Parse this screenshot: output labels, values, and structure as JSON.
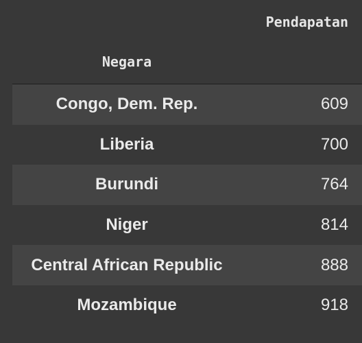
{
  "table": {
    "column_header": "Pendapatan",
    "index_header": "Negara",
    "rows": [
      {
        "label": "Congo, Dem. Rep.",
        "value": "609"
      },
      {
        "label": "Liberia",
        "value": "700"
      },
      {
        "label": "Burundi",
        "value": "764"
      },
      {
        "label": "Niger",
        "value": "814"
      },
      {
        "label": "Central African Republic",
        "value": "888"
      },
      {
        "label": "Mozambique",
        "value": "918"
      }
    ]
  },
  "colors": {
    "background": "#383838",
    "striped_row": "#444444",
    "text": "#eaeaea"
  }
}
